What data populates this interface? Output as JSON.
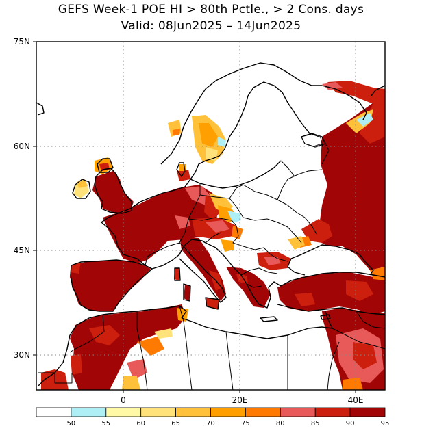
{
  "title": {
    "line1": "GEFS Week-1 POE HI > 80th Pctle., > 2 Cons. days",
    "line2": "Valid: 08Jun2025 – 14Jun2025"
  },
  "map": {
    "lat_labels": [
      "75N",
      "60N",
      "45N",
      "30N"
    ],
    "lon_labels": [
      "0",
      "20E",
      "40E"
    ]
  },
  "colorbar": {
    "colors": [
      "#ffffff",
      "#aeeef5",
      "#fff9a6",
      "#ffe27a",
      "#ffc03a",
      "#ff9f00",
      "#ff7a00",
      "#e85a5a",
      "#cc1f0e",
      "#a10505"
    ],
    "labels": [
      "50",
      "55",
      "60",
      "65",
      "70",
      "75",
      "80",
      "85",
      "90",
      "95"
    ]
  }
}
